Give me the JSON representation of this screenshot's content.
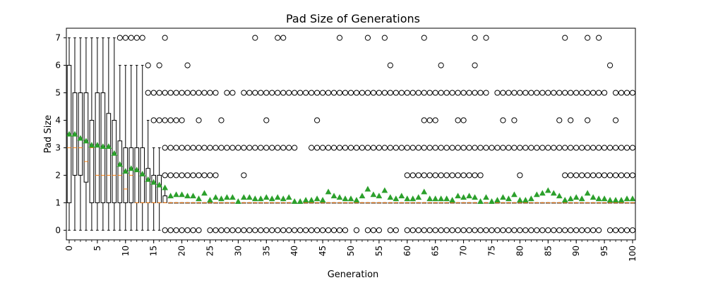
{
  "chart_data": {
    "type": "box",
    "title": "Pad Size of Generations",
    "xlabel": "Generation",
    "ylabel": "Pad Size",
    "xlim": [
      -0.5,
      100.5
    ],
    "ylim": [
      -0.35,
      7.35
    ],
    "xticks": [
      "0",
      "5",
      "10",
      "15",
      "20",
      "25",
      "30",
      "35",
      "40",
      "45",
      "50",
      "55",
      "60",
      "65",
      "70",
      "75",
      "80",
      "85",
      "90",
      "95",
      "100"
    ],
    "yticks": [
      "0",
      "1",
      "2",
      "3",
      "4",
      "5",
      "6",
      "7"
    ],
    "grid": false,
    "colors": {
      "box": "#000000",
      "median": "#ff7f0e",
      "mean_marker": "#2ca02c",
      "flier": "#000000"
    },
    "boxes": [
      {
        "gen": 0,
        "q1": 1,
        "med": 3,
        "q3": 6,
        "wlo": 0,
        "whi": 7
      },
      {
        "gen": 1,
        "q1": 2,
        "med": 3,
        "q3": 5,
        "wlo": 0,
        "whi": 7
      },
      {
        "gen": 2,
        "q1": 2,
        "med": 3,
        "q3": 5,
        "wlo": 0,
        "whi": 7
      },
      {
        "gen": 3,
        "q1": 1.75,
        "med": 2.5,
        "q3": 5,
        "wlo": 0,
        "whi": 7
      },
      {
        "gen": 4,
        "q1": 1,
        "med": 3,
        "q3": 4,
        "wlo": 0,
        "whi": 7
      },
      {
        "gen": 5,
        "q1": 1,
        "med": 2,
        "q3": 5,
        "wlo": 0,
        "whi": 7
      },
      {
        "gen": 6,
        "q1": 1,
        "med": 2,
        "q3": 5,
        "wlo": 0,
        "whi": 7
      },
      {
        "gen": 7,
        "q1": 1,
        "med": 2,
        "q3": 4.25,
        "wlo": 0,
        "whi": 7
      },
      {
        "gen": 8,
        "q1": 1,
        "med": 2,
        "q3": 4,
        "wlo": 0,
        "whi": 7
      },
      {
        "gen": 9,
        "q1": 1,
        "med": 2,
        "q3": 3.25,
        "wlo": 0,
        "whi": 6
      },
      {
        "gen": 10,
        "q1": 1,
        "med": 1.5,
        "q3": 3,
        "wlo": 0,
        "whi": 6
      },
      {
        "gen": 11,
        "q1": 1,
        "med": 2,
        "q3": 3,
        "wlo": 0,
        "whi": 6
      },
      {
        "gen": 12,
        "q1": 1,
        "med": 1,
        "q3": 3,
        "wlo": 0,
        "whi": 6
      },
      {
        "gen": 13,
        "q1": 1,
        "med": 1,
        "q3": 3,
        "wlo": 0,
        "whi": 6
      },
      {
        "gen": 14,
        "q1": 1,
        "med": 1,
        "q3": 2.25,
        "wlo": 0,
        "whi": 4
      },
      {
        "gen": 15,
        "q1": 1,
        "med": 1,
        "q3": 2,
        "wlo": 0,
        "whi": 3
      },
      {
        "gen": 16,
        "q1": 1,
        "med": 1,
        "q3": 2,
        "wlo": 0,
        "whi": 3
      },
      {
        "gen": 17,
        "q1": 1,
        "med": 1,
        "q3": 1.25,
        "wlo": 1,
        "whi": 1.5
      }
    ],
    "default_box": {
      "q1": 1,
      "med": 1,
      "q3": 1,
      "wlo": 1,
      "whi": 1
    },
    "fliers": [
      {
        "gen": 9,
        "y": [
          7
        ]
      },
      {
        "gen": 10,
        "y": [
          7
        ]
      },
      {
        "gen": 11,
        "y": [
          7
        ]
      },
      {
        "gen": 12,
        "y": [
          7
        ]
      },
      {
        "gen": 13,
        "y": [
          7
        ]
      },
      {
        "gen": 14,
        "y": [
          5,
          6
        ]
      },
      {
        "gen": 15,
        "y": [
          4,
          5
        ]
      },
      {
        "gen": 16,
        "y": [
          4,
          5,
          6
        ]
      },
      {
        "gen": 17,
        "y": [
          0,
          2,
          3,
          4,
          5,
          7
        ]
      },
      {
        "gen": 18,
        "y": [
          0,
          2,
          3,
          4,
          5
        ]
      },
      {
        "gen": 19,
        "y": [
          0,
          2,
          3,
          4,
          5
        ]
      },
      {
        "gen": 20,
        "y": [
          0,
          2,
          3,
          4,
          5
        ]
      },
      {
        "gen": 21,
        "y": [
          0,
          2,
          3,
          5,
          6
        ]
      },
      {
        "gen": 22,
        "y": [
          0,
          2,
          3,
          5
        ]
      },
      {
        "gen": 23,
        "y": [
          0,
          2,
          3,
          4,
          5
        ]
      },
      {
        "gen": 24,
        "y": [
          2,
          3,
          5
        ]
      },
      {
        "gen": 25,
        "y": [
          0,
          2,
          3,
          5
        ]
      },
      {
        "gen": 26,
        "y": [
          0,
          2,
          3,
          5
        ]
      },
      {
        "gen": 27,
        "y": [
          0,
          3,
          4
        ]
      },
      {
        "gen": 28,
        "y": [
          0,
          3,
          5
        ]
      },
      {
        "gen": 29,
        "y": [
          0,
          3,
          5
        ]
      },
      {
        "gen": 30,
        "y": [
          0,
          3
        ]
      },
      {
        "gen": 31,
        "y": [
          0,
          2,
          3,
          5
        ]
      },
      {
        "gen": 32,
        "y": [
          0,
          3,
          5
        ]
      },
      {
        "gen": 33,
        "y": [
          0,
          3,
          5,
          7
        ]
      },
      {
        "gen": 34,
        "y": [
          0,
          3,
          5
        ]
      },
      {
        "gen": 35,
        "y": [
          0,
          3,
          4,
          5
        ]
      },
      {
        "gen": 36,
        "y": [
          0,
          3,
          5
        ]
      },
      {
        "gen": 37,
        "y": [
          0,
          3,
          5,
          7
        ]
      },
      {
        "gen": 38,
        "y": [
          0,
          3,
          5,
          7
        ]
      },
      {
        "gen": 39,
        "y": [
          0,
          3,
          5
        ]
      },
      {
        "gen": 40,
        "y": [
          0,
          3,
          5
        ]
      },
      {
        "gen": 41,
        "y": [
          0,
          5
        ]
      },
      {
        "gen": 42,
        "y": [
          0,
          5
        ]
      },
      {
        "gen": 43,
        "y": [
          0,
          3,
          5
        ]
      },
      {
        "gen": 44,
        "y": [
          0,
          3,
          4,
          5
        ]
      },
      {
        "gen": 45,
        "y": [
          0,
          3,
          5
        ]
      },
      {
        "gen": 46,
        "y": [
          0,
          3,
          5
        ]
      },
      {
        "gen": 47,
        "y": [
          0,
          3,
          5
        ]
      },
      {
        "gen": 48,
        "y": [
          0,
          3,
          5,
          7
        ]
      },
      {
        "gen": 49,
        "y": [
          0,
          3,
          5
        ]
      },
      {
        "gen": 50,
        "y": [
          3,
          5
        ]
      },
      {
        "gen": 51,
        "y": [
          0,
          3,
          5
        ]
      },
      {
        "gen": 52,
        "y": [
          3,
          5
        ]
      },
      {
        "gen": 53,
        "y": [
          0,
          3,
          5,
          7
        ]
      },
      {
        "gen": 54,
        "y": [
          0,
          3,
          5
        ]
      },
      {
        "gen": 55,
        "y": [
          0,
          3,
          5
        ]
      },
      {
        "gen": 56,
        "y": [
          3,
          5,
          7
        ]
      },
      {
        "gen": 57,
        "y": [
          0,
          3,
          5,
          6
        ]
      },
      {
        "gen": 58,
        "y": [
          0,
          3,
          5
        ]
      },
      {
        "gen": 59,
        "y": [
          3,
          5
        ]
      },
      {
        "gen": 60,
        "y": [
          0,
          2,
          3,
          5
        ]
      },
      {
        "gen": 61,
        "y": [
          0,
          2,
          3,
          5
        ]
      },
      {
        "gen": 62,
        "y": [
          0,
          2,
          3,
          5
        ]
      },
      {
        "gen": 63,
        "y": [
          0,
          2,
          3,
          4,
          5,
          7
        ]
      },
      {
        "gen": 64,
        "y": [
          0,
          2,
          3,
          4,
          5
        ]
      },
      {
        "gen": 65,
        "y": [
          0,
          2,
          3,
          4,
          5
        ]
      },
      {
        "gen": 66,
        "y": [
          0,
          2,
          3,
          5,
          6
        ]
      },
      {
        "gen": 67,
        "y": [
          0,
          2,
          3,
          5
        ]
      },
      {
        "gen": 68,
        "y": [
          0,
          2,
          3,
          5
        ]
      },
      {
        "gen": 69,
        "y": [
          0,
          2,
          3,
          4,
          5
        ]
      },
      {
        "gen": 70,
        "y": [
          0,
          2,
          3,
          4,
          5
        ]
      },
      {
        "gen": 71,
        "y": [
          0,
          2,
          3,
          5
        ]
      },
      {
        "gen": 72,
        "y": [
          0,
          2,
          3,
          5,
          6,
          7
        ]
      },
      {
        "gen": 73,
        "y": [
          0,
          2,
          3,
          5
        ]
      },
      {
        "gen": 74,
        "y": [
          0,
          3,
          5,
          7
        ]
      },
      {
        "gen": 75,
        "y": [
          0,
          3
        ]
      },
      {
        "gen": 76,
        "y": [
          0,
          3,
          5
        ]
      },
      {
        "gen": 77,
        "y": [
          0,
          3,
          4,
          5
        ]
      },
      {
        "gen": 78,
        "y": [
          0,
          3,
          5
        ]
      },
      {
        "gen": 79,
        "y": [
          0,
          3,
          4,
          5
        ]
      },
      {
        "gen": 80,
        "y": [
          0,
          2,
          3,
          5
        ]
      },
      {
        "gen": 81,
        "y": [
          0,
          3,
          5
        ]
      },
      {
        "gen": 82,
        "y": [
          0,
          3,
          5
        ]
      },
      {
        "gen": 83,
        "y": [
          0,
          3,
          5
        ]
      },
      {
        "gen": 84,
        "y": [
          0,
          3,
          5
        ]
      },
      {
        "gen": 85,
        "y": [
          0,
          3,
          5
        ]
      },
      {
        "gen": 86,
        "y": [
          0,
          3,
          5
        ]
      },
      {
        "gen": 87,
        "y": [
          0,
          3,
          4,
          5
        ]
      },
      {
        "gen": 88,
        "y": [
          0,
          2,
          3,
          5,
          7
        ]
      },
      {
        "gen": 89,
        "y": [
          0,
          2,
          3,
          4,
          5
        ]
      },
      {
        "gen": 90,
        "y": [
          0,
          2,
          3,
          5
        ]
      },
      {
        "gen": 91,
        "y": [
          0,
          2,
          3,
          5
        ]
      },
      {
        "gen": 92,
        "y": [
          0,
          2,
          3,
          4,
          5,
          7
        ]
      },
      {
        "gen": 93,
        "y": [
          0,
          2,
          3,
          5
        ]
      },
      {
        "gen": 94,
        "y": [
          0,
          2,
          3,
          5,
          7
        ]
      },
      {
        "gen": 95,
        "y": [
          2,
          3,
          5
        ]
      },
      {
        "gen": 96,
        "y": [
          0,
          2,
          3,
          6
        ]
      },
      {
        "gen": 97,
        "y": [
          0,
          2,
          3,
          4,
          5
        ]
      },
      {
        "gen": 98,
        "y": [
          0,
          2,
          3,
          5
        ]
      },
      {
        "gen": 99,
        "y": [
          0,
          2,
          3,
          5
        ]
      },
      {
        "gen": 100,
        "y": [
          0,
          2,
          3,
          5
        ]
      }
    ],
    "means": [
      3.5,
      3.5,
      3.35,
      3.25,
      3.1,
      3.1,
      3.05,
      3.05,
      2.8,
      2.4,
      2.15,
      2.25,
      2.2,
      2.05,
      1.85,
      1.75,
      1.65,
      1.55,
      1.25,
      1.3,
      1.3,
      1.25,
      1.25,
      1.15,
      1.35,
      1.1,
      1.2,
      1.15,
      1.2,
      1.2,
      1.05,
      1.2,
      1.2,
      1.15,
      1.15,
      1.2,
      1.15,
      1.2,
      1.15,
      1.2,
      1.05,
      1.05,
      1.1,
      1.1,
      1.15,
      1.1,
      1.4,
      1.25,
      1.2,
      1.15,
      1.15,
      1.1,
      1.25,
      1.5,
      1.3,
      1.25,
      1.45,
      1.2,
      1.15,
      1.25,
      1.15,
      1.15,
      1.2,
      1.4,
      1.15,
      1.15,
      1.15,
      1.15,
      1.1,
      1.25,
      1.2,
      1.25,
      1.2,
      1.05,
      1.2,
      1.05,
      1.1,
      1.2,
      1.15,
      1.3,
      1.1,
      1.1,
      1.15,
      1.3,
      1.35,
      1.45,
      1.35,
      1.25,
      1.1,
      1.15,
      1.2,
      1.15,
      1.35,
      1.2,
      1.15,
      1.15,
      1.1,
      1.1,
      1.1,
      1.15,
      1.15
    ]
  }
}
